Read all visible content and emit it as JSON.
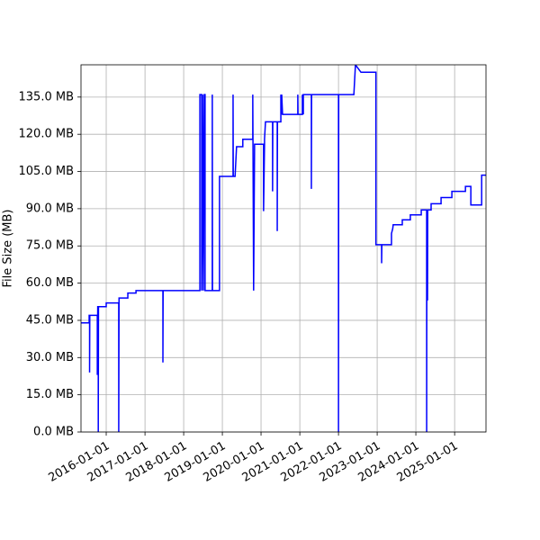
{
  "chart_data": {
    "type": "line",
    "ylabel": "File Size (MB)",
    "color": "#0000ff",
    "grid": true,
    "xlim": [
      "2015-05-08",
      "2025-10-24"
    ],
    "xticks": [
      "2016-01-01",
      "2017-01-01",
      "2018-01-01",
      "2019-01-01",
      "2020-01-01",
      "2021-01-01",
      "2022-01-01",
      "2023-01-01",
      "2024-01-01",
      "2025-01-01"
    ],
    "ylim": [
      0,
      148
    ],
    "yticks": [
      {
        "value": 0,
        "label": "0.0 MB"
      },
      {
        "value": 15,
        "label": "15.0 MB"
      },
      {
        "value": 30,
        "label": "30.0 MB"
      },
      {
        "value": 45,
        "label": "45.0 MB"
      },
      {
        "value": 60,
        "label": "60.0 MB"
      },
      {
        "value": 75,
        "label": "75.0 MB"
      },
      {
        "value": 90,
        "label": "90.0 MB"
      },
      {
        "value": 105,
        "label": "105.0 MB"
      },
      {
        "value": 120,
        "label": "120.0 MB"
      },
      {
        "value": 135,
        "label": "135.0 MB"
      }
    ],
    "x": [
      "2015-05-08",
      "2015-07-24",
      "2015-07-24",
      "2015-07-28",
      "2015-07-28",
      "2015-07-30",
      "2015-10-09",
      "2015-10-09",
      "2015-10-13",
      "2015-10-18",
      "2015-10-18",
      "2015-10-20",
      "2016-01-01",
      "2016-01-01",
      "2016-04-28",
      "2016-04-28",
      "2016-05-01",
      "2016-07-23",
      "2016-07-23",
      "2016-10-08",
      "2016-10-08",
      "2017-06-19",
      "2017-06-19",
      "2017-06-21",
      "2018-06-03",
      "2018-06-03",
      "2018-06-20",
      "2018-06-20",
      "2018-06-28",
      "2018-07-06",
      "2018-07-14",
      "2018-07-22",
      "2018-07-22",
      "2018-09-28",
      "2018-09-28",
      "2018-09-30",
      "2018-12-05",
      "2018-12-05",
      "2019-04-12",
      "2019-04-12",
      "2019-04-14",
      "2019-05-01",
      "2019-05-15",
      "2019-07-13",
      "2019-07-13",
      "2019-10-15",
      "2019-10-15",
      "2019-10-23",
      "2019-11-01",
      "2020-01-25",
      "2020-01-25",
      "2020-02-03",
      "2020-02-03",
      "2020-02-12",
      "2020-04-19",
      "2020-04-19",
      "2020-04-21",
      "2020-06-02",
      "2020-06-02",
      "2020-06-04",
      "2020-07-06",
      "2020-07-06",
      "2020-07-14",
      "2020-07-14",
      "2020-07-22",
      "2020-12-13",
      "2020-12-13",
      "2020-12-15",
      "2021-01-25",
      "2021-01-25",
      "2021-02-03",
      "2021-02-03",
      "2021-04-20",
      "2021-04-20",
      "2021-04-22",
      "2022-01-01",
      "2022-01-01",
      "2022-01-03",
      "2022-05-26",
      "2022-06-10",
      "2022-08-01",
      "2022-12-20",
      "2022-12-20",
      "2023-02-12",
      "2023-02-12",
      "2023-02-14",
      "2023-05-16",
      "2023-05-16",
      "2023-05-28",
      "2023-06-01",
      "2023-08-26",
      "2023-08-26",
      "2023-11-10",
      "2023-11-10",
      "2024-02-21",
      "2024-02-21",
      "2024-04-12",
      "2024-04-12",
      "2024-04-14",
      "2024-04-20",
      "2024-04-22",
      "2024-05-24",
      "2024-05-24",
      "2024-08-26",
      "2024-08-26",
      "2024-12-06",
      "2024-12-06",
      "2025-04-13",
      "2025-04-13",
      "2025-06-03",
      "2025-06-03",
      "2025-09-13",
      "2025-09-13",
      "2025-10-24"
    ],
    "values": [
      44,
      44,
      47,
      47,
      24,
      47,
      47,
      23,
      50.5,
      50.5,
      0,
      50.5,
      50.5,
      52,
      52,
      0,
      54,
      54,
      56,
      56,
      57,
      57,
      28,
      57,
      57,
      136,
      136,
      57,
      136,
      57,
      136,
      136,
      57,
      57,
      136,
      57,
      57,
      103,
      103,
      136,
      103,
      103,
      115,
      115,
      118,
      118,
      136,
      57,
      116,
      116,
      89,
      116,
      118,
      125,
      125,
      97,
      125,
      125,
      81,
      125,
      125,
      136,
      128,
      136,
      128,
      128,
      136,
      128,
      128,
      136,
      128,
      136,
      136,
      98,
      136,
      136,
      0,
      136,
      136,
      148,
      145,
      145,
      75.5,
      75.5,
      68,
      75.5,
      75.5,
      80,
      82,
      83.5,
      83.5,
      85.5,
      85.5,
      87.5,
      87.5,
      89.5,
      89.5,
      0,
      89.5,
      53,
      89.5,
      89.5,
      92,
      92,
      94.5,
      94.5,
      97,
      97,
      99,
      99,
      91.5,
      91.5,
      103.5,
      103.5
    ]
  }
}
